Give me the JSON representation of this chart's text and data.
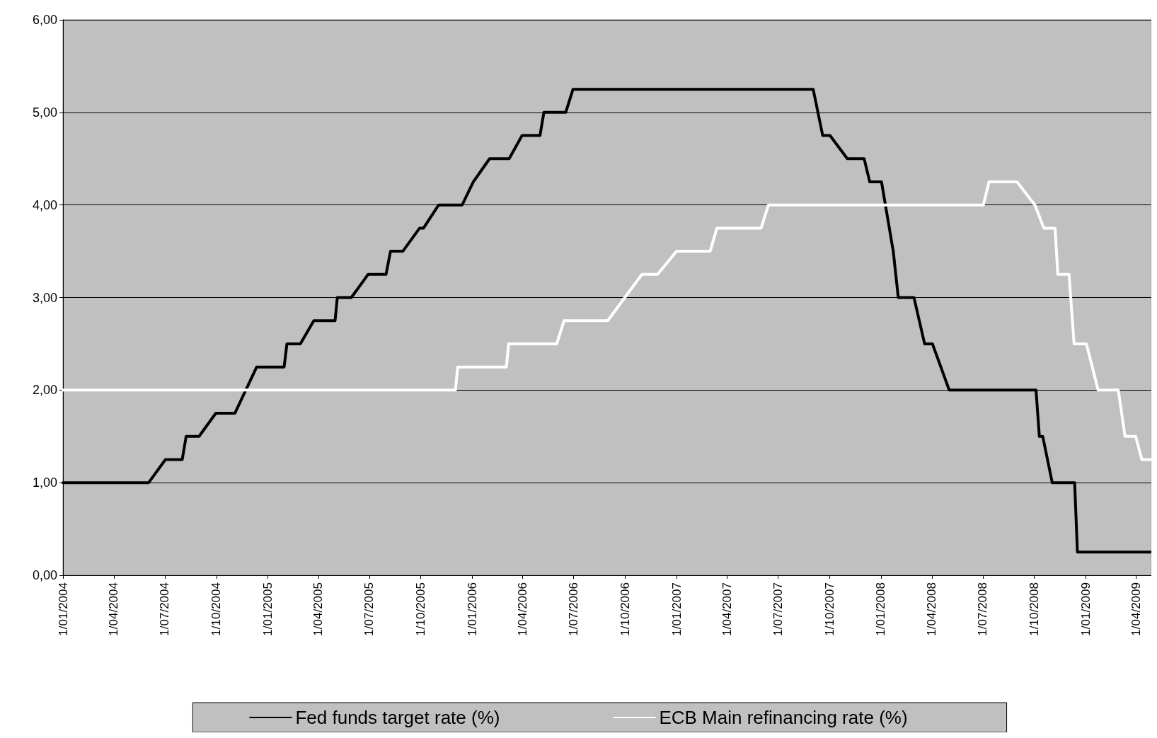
{
  "chart_data": {
    "type": "line",
    "legend": "bottom",
    "grid": "y",
    "marker": "none",
    "line_style": "solid",
    "xlim": [
      "2004-01-01",
      "2009-04-28"
    ],
    "xticks": [
      {
        "value": "2004-01-01",
        "label": "1/01/2004"
      },
      {
        "value": "2004-04-01",
        "label": "1/04/2004"
      },
      {
        "value": "2004-07-01",
        "label": "1/07/2004"
      },
      {
        "value": "2004-10-01",
        "label": "1/10/2004"
      },
      {
        "value": "2005-01-01",
        "label": "1/01/2005"
      },
      {
        "value": "2005-04-01",
        "label": "1/04/2005"
      },
      {
        "value": "2005-07-01",
        "label": "1/07/2005"
      },
      {
        "value": "2005-10-01",
        "label": "1/10/2005"
      },
      {
        "value": "2006-01-01",
        "label": "1/01/2006"
      },
      {
        "value": "2006-04-01",
        "label": "1/04/2006"
      },
      {
        "value": "2006-07-01",
        "label": "1/07/2006"
      },
      {
        "value": "2006-10-01",
        "label": "1/10/2006"
      },
      {
        "value": "2007-01-01",
        "label": "1/01/2007"
      },
      {
        "value": "2007-04-01",
        "label": "1/04/2007"
      },
      {
        "value": "2007-07-01",
        "label": "1/07/2007"
      },
      {
        "value": "2007-10-01",
        "label": "1/10/2007"
      },
      {
        "value": "2008-01-01",
        "label": "1/01/2008"
      },
      {
        "value": "2008-04-01",
        "label": "1/04/2008"
      },
      {
        "value": "2008-07-01",
        "label": "1/07/2008"
      },
      {
        "value": "2008-10-01",
        "label": "1/10/2008"
      },
      {
        "value": "2009-01-01",
        "label": "1/01/2009"
      },
      {
        "value": "2009-04-01",
        "label": "1/04/2009"
      }
    ],
    "ylim": [
      0,
      6
    ],
    "yticks": [
      {
        "value": 0,
        "label": "0,00"
      },
      {
        "value": 1,
        "label": "1,00"
      },
      {
        "value": 2,
        "label": "2,00"
      },
      {
        "value": 3,
        "label": "3,00"
      },
      {
        "value": 4,
        "label": "4,00"
      },
      {
        "value": 5,
        "label": "5,00"
      },
      {
        "value": 6,
        "label": "6,00"
      }
    ],
    "series": [
      {
        "name": "Fed funds target rate (%)",
        "color": "#000000",
        "x": [
          "2004-01-01",
          "2004-06-02",
          "2004-07-02",
          "2004-08-01",
          "2004-08-08",
          "2004-08-31",
          "2004-09-30",
          "2004-11-03",
          "2004-12-12",
          "2005-01-30",
          "2005-02-04",
          "2005-02-28",
          "2005-03-24",
          "2005-05-01",
          "2005-05-05",
          "2005-05-30",
          "2005-06-29",
          "2005-07-31",
          "2005-08-08",
          "2005-08-30",
          "2005-09-29",
          "2005-10-06",
          "2005-11-02",
          "2005-12-14",
          "2006-01-03",
          "2006-02-01",
          "2006-03-08",
          "2006-03-31",
          "2006-05-02",
          "2006-05-09",
          "2006-06-17",
          "2006-06-30",
          "2007-09-02",
          "2007-09-19",
          "2007-10-02",
          "2007-11-02",
          "2007-12-02",
          "2007-12-12",
          "2008-01-02",
          "2008-01-23",
          "2008-02-01",
          "2008-02-29",
          "2008-03-19",
          "2008-04-02",
          "2008-05-02",
          "2008-10-04",
          "2008-10-10",
          "2008-10-16",
          "2008-11-02",
          "2008-12-12",
          "2008-12-17",
          "2009-04-28"
        ],
        "values": [
          1.0,
          1.0,
          1.25,
          1.25,
          1.5,
          1.5,
          1.75,
          1.75,
          2.25,
          2.25,
          2.5,
          2.5,
          2.75,
          2.75,
          3.0,
          3.0,
          3.25,
          3.25,
          3.5,
          3.5,
          3.75,
          3.75,
          4.0,
          4.0,
          4.25,
          4.5,
          4.5,
          4.75,
          4.75,
          5.0,
          5.0,
          5.25,
          5.25,
          4.75,
          4.75,
          4.5,
          4.5,
          4.25,
          4.25,
          3.5,
          3.0,
          3.0,
          2.5,
          2.5,
          2.0,
          2.0,
          1.5,
          1.5,
          1.0,
          1.0,
          0.25,
          0.25
        ]
      },
      {
        "name": "ECB Main refinancing rate (%)",
        "color": "#ffffff",
        "x": [
          "2004-01-01",
          "2005-12-02",
          "2005-12-06",
          "2006-03-03",
          "2006-03-07",
          "2006-06-01",
          "2006-06-14",
          "2006-08-31",
          "2006-10-31",
          "2006-11-28",
          "2007-01-01",
          "2007-03-02",
          "2007-03-14",
          "2007-06-01",
          "2007-06-14",
          "2008-07-02",
          "2008-07-12",
          "2008-08-31",
          "2008-10-02",
          "2008-10-18",
          "2008-11-07",
          "2008-11-12",
          "2008-12-02",
          "2008-12-11",
          "2009-01-02",
          "2009-01-23",
          "2009-02-28",
          "2009-03-12",
          "2009-03-31",
          "2009-04-11",
          "2009-04-28"
        ],
        "values": [
          2.0,
          2.0,
          2.25,
          2.25,
          2.5,
          2.5,
          2.75,
          2.75,
          3.25,
          3.25,
          3.5,
          3.5,
          3.75,
          3.75,
          4.0,
          4.0,
          4.25,
          4.25,
          4.0,
          3.75,
          3.75,
          3.25,
          3.25,
          2.5,
          2.5,
          2.0,
          2.0,
          1.5,
          1.5,
          1.25,
          1.25
        ]
      }
    ]
  }
}
